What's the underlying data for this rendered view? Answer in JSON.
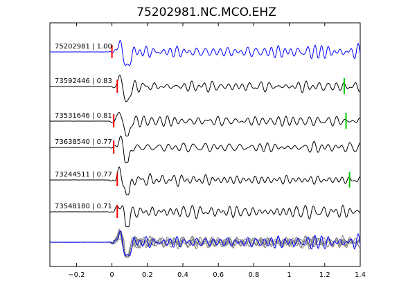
{
  "chart_data": {
    "type": "line",
    "title": "75202981.NC.MCO.EHZ",
    "xlabel": "",
    "ylabel": "",
    "xlim": [
      -0.35,
      1.4
    ],
    "xticks": [
      -0.2,
      0,
      0.2,
      0.4,
      0.6,
      0.8,
      1,
      1.2,
      1.4
    ],
    "xtick_labels": [
      "−0.2",
      "0",
      "0.2",
      "0.4",
      "0.6",
      "0.8",
      "1",
      "1.2",
      "1.4"
    ],
    "grid": false,
    "traces": [
      {
        "label": "75202981 | 1.00",
        "color": "#0000ff",
        "p_pick": 0.0,
        "s_pick": null,
        "seed": 3
      },
      {
        "label": "73592446 | 0.83",
        "color": "#000000",
        "p_pick": 0.03,
        "s_pick": 1.31,
        "seed": 7
      },
      {
        "label": "73531646 | 0.81",
        "color": "#000000",
        "p_pick": 0.01,
        "s_pick": 1.32,
        "seed": 11
      },
      {
        "label": "73638540 | 0.77",
        "color": "#000000",
        "p_pick": 0.01,
        "s_pick": null,
        "seed": 13
      },
      {
        "label": "73244511 | 0.77",
        "color": "#000000",
        "p_pick": 0.03,
        "s_pick": 1.34,
        "seed": 17
      },
      {
        "label": "73548180 | 0.71",
        "color": "#000000",
        "p_pick": 0.03,
        "s_pick": null,
        "seed": 19
      }
    ],
    "stack": {
      "reference_color": "#0000ff",
      "others_color": "#808080"
    },
    "p_pick_color": "#ff0000",
    "s_pick_color": "#00cc00"
  }
}
